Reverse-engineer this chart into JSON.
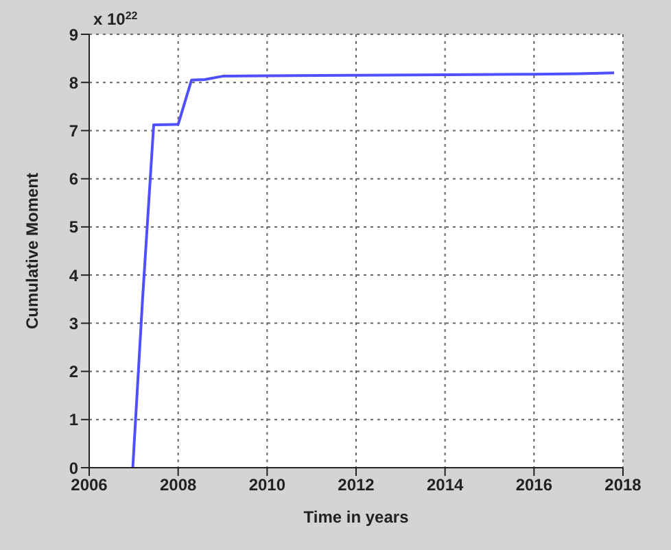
{
  "chart_data": {
    "type": "line",
    "xlabel": "Time in years",
    "ylabel": "Cumulative Moment",
    "annotations": [
      "x 10$^{22}$"
    ],
    "x": [
      2006.98,
      2007.2,
      2007.45,
      2008.0,
      2008.3,
      2008.6,
      2009.0,
      2010.0,
      2012.0,
      2014.0,
      2016.0,
      2017.0,
      2017.8
    ],
    "series": [
      {
        "color": "#4f4fff",
        "values": [
          0,
          3.5,
          7.12,
          7.13,
          8.05,
          8.06,
          8.13,
          8.14,
          8.15,
          8.16,
          8.17,
          8.18,
          8.2
        ]
      }
    ],
    "xlim": [
      2006,
      2018
    ],
    "xticks": [
      2006,
      2008,
      2010,
      2012,
      2014,
      2016,
      2018
    ],
    "ylim": [
      0,
      9
    ],
    "yticks": [
      0,
      1,
      2,
      3,
      4,
      5,
      6,
      7,
      8,
      9
    ],
    "grid": true,
    "marker": "none",
    "line_style": "solid"
  }
}
